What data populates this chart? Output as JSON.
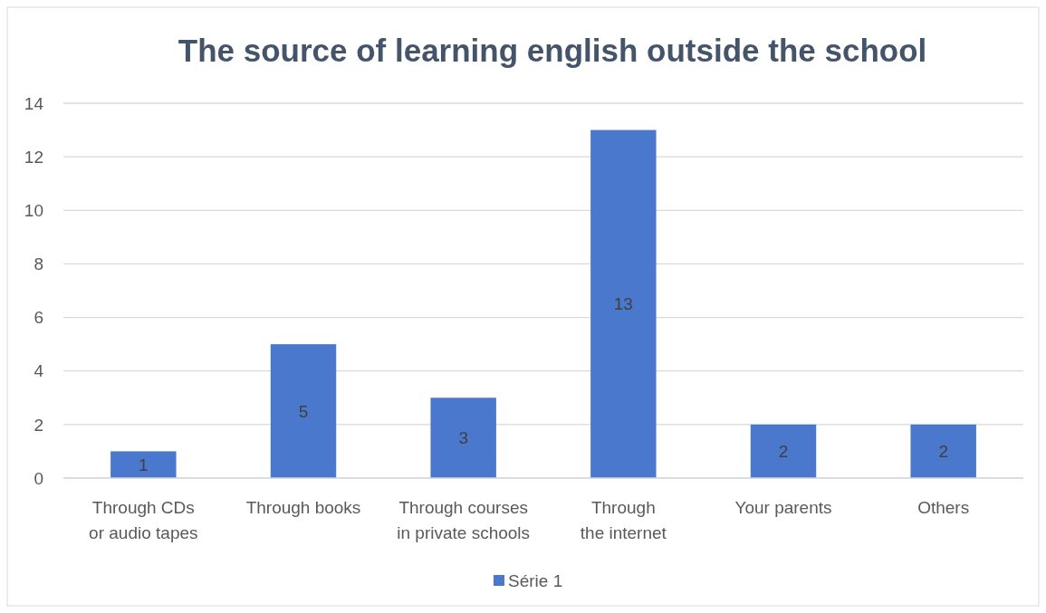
{
  "chart_data": {
    "type": "bar",
    "title": "The source of learning english outside the school",
    "categories": [
      "Through CDs or audio tapes",
      "Through books",
      "Through courses in private schools",
      "Through the internet",
      "Your parents",
      "Others"
    ],
    "series": [
      {
        "name": "Série 1",
        "color": "#4a78cc",
        "values": [
          1,
          5,
          3,
          13,
          2,
          2
        ]
      }
    ],
    "ylim": [
      0,
      14
    ],
    "yticks": [
      0,
      2,
      4,
      6,
      8,
      10,
      12,
      14
    ],
    "grid": "y",
    "legend": "bottom",
    "data_labels": true
  }
}
